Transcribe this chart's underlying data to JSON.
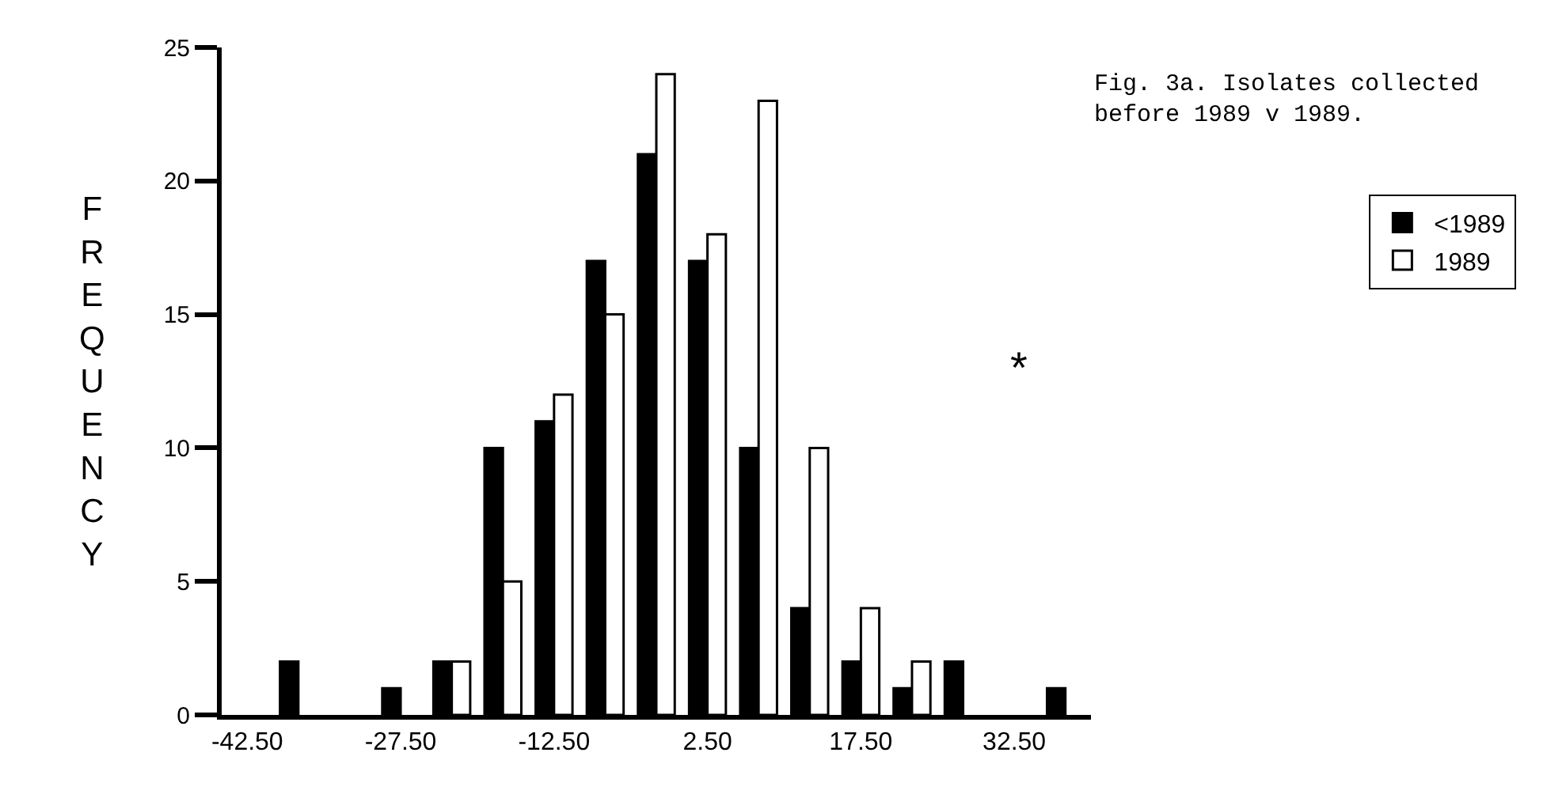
{
  "chart_data": {
    "type": "bar",
    "title": "Fig. 3a. Isolates collected\nbefore 1989 v 1989.",
    "ylabel": "FREQUENCY",
    "x": [
      -37.5,
      -32.5,
      -27.5,
      -22.5,
      -17.5,
      -12.5,
      -7.5,
      -2.5,
      2.5,
      7.5,
      12.5,
      17.5,
      22.5,
      27.5,
      32.5,
      37.5
    ],
    "series": [
      {
        "name": "<1989",
        "color": "#000000",
        "values": [
          2,
          null,
          1,
          2,
          10,
          11,
          17,
          21,
          17,
          10,
          4,
          2,
          1,
          2,
          null,
          1
        ]
      },
      {
        "name": "1989",
        "color": "#ffffff",
        "values": [
          null,
          null,
          null,
          2,
          5,
          12,
          15,
          24,
          18,
          23,
          10,
          4,
          2,
          null,
          null,
          null
        ]
      }
    ],
    "xlim": [
      -45,
      40
    ],
    "xticks": [
      {
        "value": -42.5,
        "label": "-42.50"
      },
      {
        "value": -27.5,
        "label": "-27.50"
      },
      {
        "value": -12.5,
        "label": "-12.50"
      },
      {
        "value": 2.5,
        "label": "2.50"
      },
      {
        "value": 17.5,
        "label": "17.50"
      },
      {
        "value": 32.5,
        "label": "32.50"
      }
    ],
    "ylim": [
      0,
      25
    ],
    "yticks": [
      0,
      5,
      10,
      15,
      20,
      25
    ],
    "annotations": [
      "*"
    ],
    "legend": "right"
  }
}
